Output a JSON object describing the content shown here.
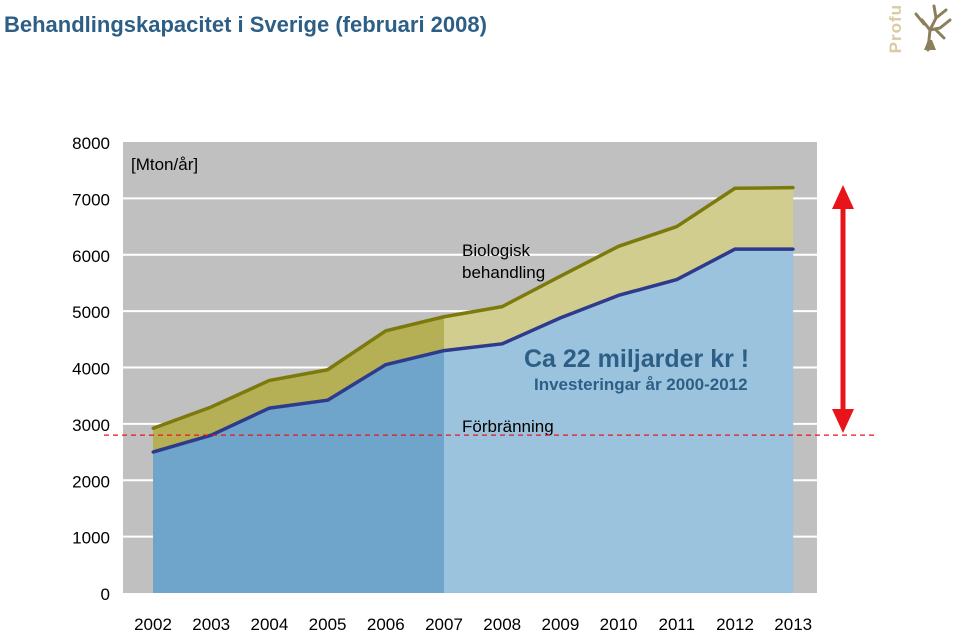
{
  "title": "Behandlingskapacitet i Sverige (februari 2008)",
  "logo": {
    "text": "Profu",
    "icon": "tree-icon"
  },
  "chart_data": {
    "type": "area",
    "unit_label": "[Mton/år]",
    "categories": [
      "2002",
      "2003",
      "2004",
      "2005",
      "2006",
      "2007",
      "2008",
      "2009",
      "2010",
      "2011",
      "2012",
      "2013"
    ],
    "ylim": [
      0,
      8000
    ],
    "yticks": [
      "0",
      "1000",
      "2000",
      "3000",
      "4000",
      "5000",
      "6000",
      "7000",
      "8000"
    ],
    "series": [
      {
        "name": "Förbränning",
        "values": [
          2500,
          2800,
          3280,
          3420,
          4050,
          4300,
          4420,
          4880,
          5280,
          5560,
          6100,
          6100
        ]
      },
      {
        "name": "Biologisk behandling",
        "values": [
          2920,
          3300,
          3770,
          3960,
          4650,
          4900,
          5080,
          5620,
          6150,
          6500,
          7180,
          7190
        ]
      }
    ],
    "grid": true,
    "highlight_from": "2007",
    "reference_value": 2800,
    "series_label_lines": [
      "Biologisk",
      "behandling"
    ],
    "annotation_main": "Ca 22 miljarder kr !",
    "annotation_sub": "Investeringar år 2000-2012",
    "colors": {
      "plot_bg": "#c0c0c0",
      "incin_dark": "#6fa4cb",
      "incin_light": "#9cc3de",
      "bio_dark": "#b5b055",
      "bio_light": "#d1cd8e",
      "bio_line": "#7d7a0d",
      "incin_line": "#2e3a8c",
      "arrow": "#e8141a",
      "title": "#2d5f86"
    }
  }
}
